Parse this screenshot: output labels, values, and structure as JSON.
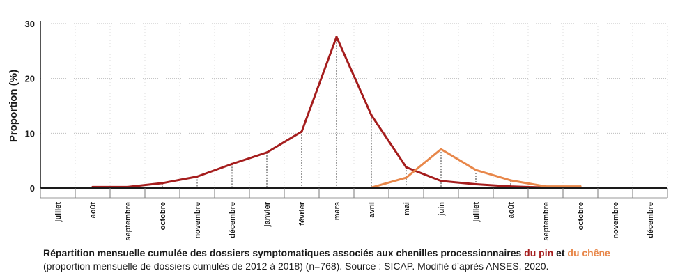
{
  "chart_data": {
    "type": "line",
    "title": "",
    "xlabel": "",
    "ylabel": "Proportion (%)",
    "ylim": [
      0,
      30
    ],
    "yticks": [
      0,
      10,
      20,
      30
    ],
    "grid": true,
    "categories": [
      "juillet",
      "août",
      "septembre",
      "octobre",
      "novembre",
      "décembre",
      "janvier",
      "février",
      "mars",
      "avril",
      "mai",
      "juin",
      "juillet",
      "août",
      "septembre",
      "octobre",
      "novembre",
      "décembre"
    ],
    "series": [
      {
        "name": "du pin",
        "color": "#a51d1d",
        "values": [
          null,
          0.2,
          0.2,
          0.9,
          2.1,
          4.4,
          6.5,
          10.3,
          27.6,
          13.3,
          3.8,
          1.3,
          0.7,
          0.3,
          0.1,
          null,
          null,
          null
        ]
      },
      {
        "name": "du chêne",
        "color": "#e8874a",
        "values": [
          null,
          null,
          null,
          null,
          null,
          null,
          null,
          null,
          null,
          0.1,
          1.9,
          7.1,
          3.3,
          1.4,
          0.3,
          0.3,
          null,
          null
        ]
      }
    ]
  },
  "caption": {
    "line1_prefix": "Répartition mensuelle cumulée des dossiers symptomatiques associés aux chenilles processionnaires ",
    "pin_label": "du pin",
    "connector": " et ",
    "chene_label": "du chêne",
    "line2": "(proportion mensuelle de dossiers cumulés de 2012 à 2018) (n=768). Source : SICAP. Modifié d’après ANSES, 2020."
  }
}
